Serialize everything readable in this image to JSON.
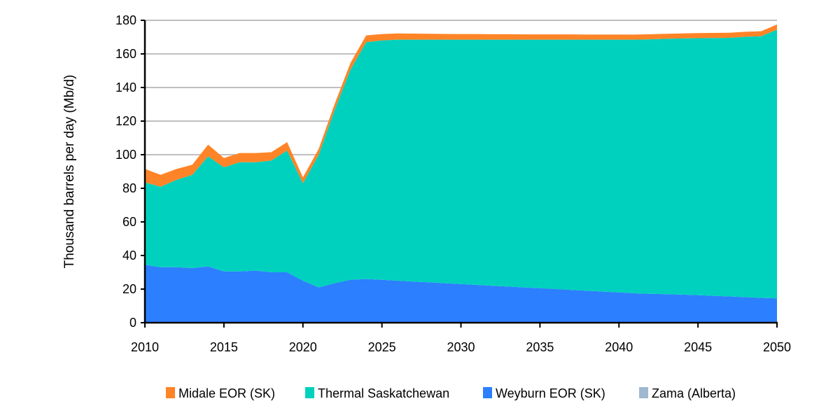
{
  "chart_data": {
    "type": "area",
    "stacked": true,
    "title": "",
    "xlabel": "",
    "ylabel": "Thousand barrels per day (Mb/d)",
    "xlim": [
      2010,
      2050
    ],
    "ylim": [
      0,
      180
    ],
    "x_ticks": [
      2010,
      2015,
      2020,
      2025,
      2030,
      2035,
      2040,
      2045,
      2050
    ],
    "y_ticks": [
      0,
      20,
      40,
      60,
      80,
      100,
      120,
      140,
      160,
      180
    ],
    "grid": "horizontal",
    "legend_position": "bottom",
    "x": [
      2010,
      2011,
      2012,
      2013,
      2014,
      2015,
      2016,
      2017,
      2018,
      2019,
      2020,
      2021,
      2022,
      2023,
      2024,
      2025,
      2026,
      2027,
      2028,
      2029,
      2030,
      2031,
      2032,
      2033,
      2034,
      2035,
      2036,
      2037,
      2038,
      2039,
      2040,
      2041,
      2042,
      2043,
      2044,
      2045,
      2046,
      2047,
      2048,
      2049,
      2050
    ],
    "series": [
      {
        "name": "Zama (Alberta)",
        "color": "#9fb8d0",
        "values": [
          0,
          0,
          0,
          0,
          0,
          0,
          0,
          0,
          0,
          0,
          0,
          0,
          0,
          0,
          0,
          0,
          0,
          0,
          0,
          0,
          0,
          0,
          0,
          0,
          0,
          0,
          0,
          0,
          0,
          0,
          0,
          0,
          0,
          0,
          0,
          0,
          0,
          0,
          0,
          0,
          0
        ]
      },
      {
        "name": "Weyburn EOR (SK)",
        "color": "#2c7fff",
        "values": [
          34.5,
          33,
          33,
          32.5,
          33.5,
          30.5,
          30.5,
          31,
          30,
          30,
          25,
          21,
          23.5,
          25.5,
          26,
          25.5,
          25,
          24.5,
          24,
          23.5,
          23,
          22.5,
          22,
          21.5,
          21,
          20.5,
          20,
          19.5,
          19,
          18.5,
          18,
          17.5,
          17.2,
          17,
          16.7,
          16.4,
          16,
          15.6,
          15.2,
          14.8,
          14.5
        ]
      },
      {
        "name": "Thermal Saskatchewan",
        "color": "#00d1be",
        "values": [
          49,
          48,
          52,
          55.5,
          65.5,
          62,
          65,
          64.5,
          66.5,
          72.5,
          58,
          79,
          103,
          125,
          141,
          142.5,
          143.5,
          144,
          144.5,
          145,
          145.5,
          146,
          146.5,
          147,
          147.5,
          148,
          148.5,
          149,
          149.5,
          150,
          150.5,
          151,
          151.5,
          152,
          152.5,
          153,
          153.5,
          154,
          155,
          155.7,
          160
        ]
      },
      {
        "name": "Midale EOR (SK)",
        "color": "#ff8427",
        "values": [
          8,
          7,
          6.5,
          6,
          7,
          5.5,
          5.5,
          5.5,
          5,
          5,
          3.5,
          3.5,
          3.5,
          4,
          4,
          3.8,
          3.7,
          3.6,
          3.5,
          3.4,
          3.3,
          3.3,
          3.2,
          3.2,
          3.1,
          3.1,
          3.1,
          3.1,
          3.0,
          3.0,
          3.0,
          3.0,
          3.0,
          3.0,
          3.0,
          3.0,
          3.0,
          3.0,
          3.0,
          3.0,
          3.0
        ]
      }
    ],
    "legend_order": [
      "Midale EOR (SK)",
      "Thermal Saskatchewan",
      "Weyburn EOR (SK)",
      "Zama (Alberta)"
    ]
  }
}
